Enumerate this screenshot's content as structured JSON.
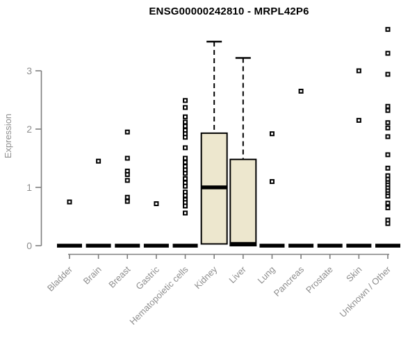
{
  "title": "ENSG00000242810 - MRPL42P6",
  "chart_data": {
    "type": "box",
    "title": "ENSG00000242810 - MRPL42P6",
    "xlabel": "",
    "ylabel": "Expression",
    "ylim": [
      0,
      3.9
    ],
    "yticks": [
      0,
      1,
      2,
      3
    ],
    "grid": false,
    "legend": "none",
    "marker": "open-square",
    "categories": [
      "Bladder",
      "Brain",
      "Breast",
      "Gastric",
      "Hematopoietic cells",
      "Kidney",
      "Liver",
      "Lung",
      "Pancreas",
      "Prostate",
      "Skin",
      "Unknown / Other"
    ],
    "series": [
      {
        "category": "Bladder",
        "box": {
          "q1": 0,
          "median": 0,
          "q3": 0,
          "whisker_low": 0,
          "whisker_high": 0
        },
        "points": [
          0.75
        ]
      },
      {
        "category": "Brain",
        "box": {
          "q1": 0,
          "median": 0,
          "q3": 0,
          "whisker_low": 0,
          "whisker_high": 0
        },
        "points": [
          1.45
        ]
      },
      {
        "category": "Breast",
        "box": {
          "q1": 0,
          "median": 0,
          "q3": 0,
          "whisker_low": 0,
          "whisker_high": 0
        },
        "points": [
          1.95,
          1.5,
          1.28,
          1.22,
          1.12,
          0.83,
          0.76
        ]
      },
      {
        "category": "Gastric",
        "box": {
          "q1": 0,
          "median": 0,
          "q3": 0,
          "whisker_low": 0,
          "whisker_high": 0
        },
        "points": [
          0.72
        ]
      },
      {
        "category": "Hematopoietic cells",
        "box": {
          "q1": 0,
          "median": 0,
          "q3": 0,
          "whisker_low": 0,
          "whisker_high": 0
        },
        "points": [
          2.49,
          2.37,
          2.21,
          2.12,
          2.05,
          1.98,
          1.92,
          1.86,
          1.68,
          1.5,
          1.43,
          1.36,
          1.3,
          1.24,
          1.15,
          1.08,
          1.02,
          0.92,
          0.86,
          0.79,
          0.74,
          0.68,
          0.56
        ]
      },
      {
        "category": "Kidney",
        "box": {
          "q1": 0.03,
          "median": 1.0,
          "q3": 1.93,
          "whisker_low": 0,
          "whisker_high": 3.5
        },
        "points": []
      },
      {
        "category": "Liver",
        "box": {
          "q1": 0,
          "median": 0.03,
          "q3": 1.48,
          "whisker_low": 0,
          "whisker_high": 3.22
        },
        "points": []
      },
      {
        "category": "Lung",
        "box": {
          "q1": 0,
          "median": 0,
          "q3": 0,
          "whisker_low": 0,
          "whisker_high": 0
        },
        "points": [
          1.92,
          1.1
        ]
      },
      {
        "category": "Pancreas",
        "box": {
          "q1": 0,
          "median": 0,
          "q3": 0,
          "whisker_low": 0,
          "whisker_high": 0
        },
        "points": [
          2.65
        ]
      },
      {
        "category": "Prostate",
        "box": {
          "q1": 0,
          "median": 0,
          "q3": 0,
          "whisker_low": 0,
          "whisker_high": 0
        },
        "points": []
      },
      {
        "category": "Skin",
        "box": {
          "q1": 0,
          "median": 0,
          "q3": 0,
          "whisker_low": 0,
          "whisker_high": 0
        },
        "points": [
          3.0,
          2.15
        ]
      },
      {
        "category": "Unknown / Other",
        "box": {
          "q1": 0,
          "median": 0,
          "q3": 0,
          "whisker_low": 0,
          "whisker_high": 0
        },
        "points": [
          3.71,
          3.3,
          2.94,
          2.39,
          2.32,
          2.11,
          2.02,
          1.87,
          1.56,
          1.33,
          1.2,
          1.14,
          1.08,
          1.04,
          0.99,
          0.94,
          0.89,
          0.85,
          0.73,
          0.65,
          0.44,
          0.38
        ]
      }
    ]
  },
  "colors": {
    "background": "#ffffff",
    "box_fill": "#EDE7CE",
    "box_stroke": "#000000",
    "median": "#000000",
    "whisker": "#000000",
    "point_stroke": "#000000",
    "point_fill": "#ffffff",
    "axis_line": "#7d7d7d",
    "label_text": "#8e8e8e",
    "title_text": "#000000"
  }
}
